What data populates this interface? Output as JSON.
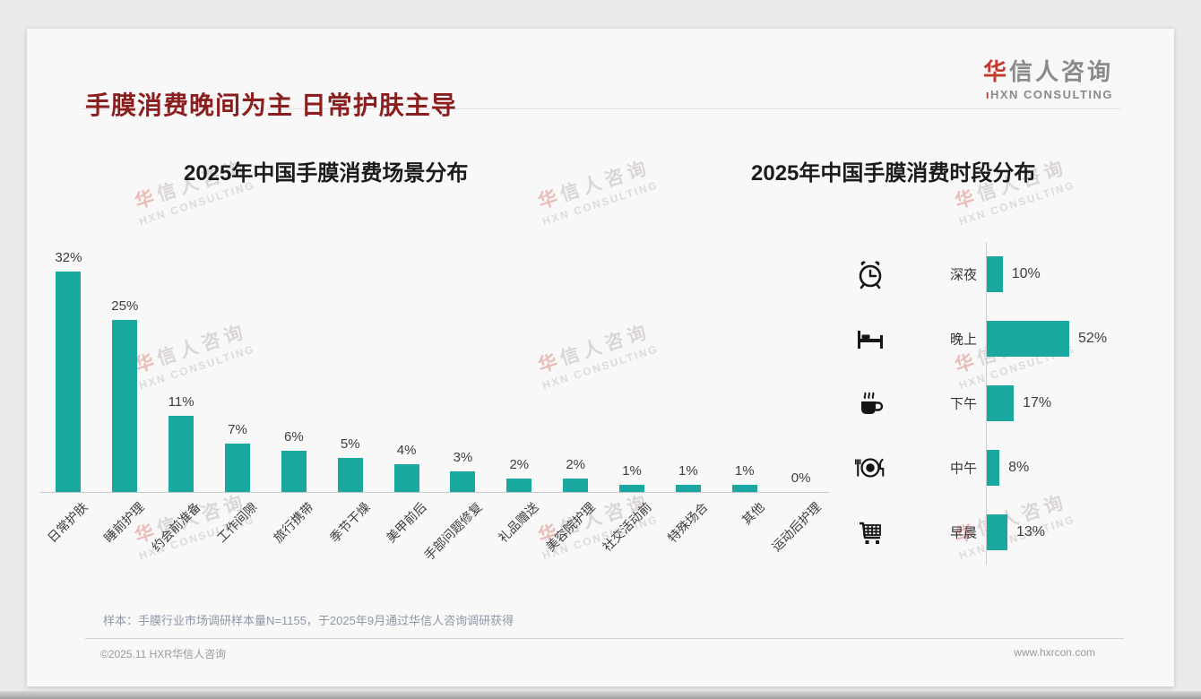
{
  "page": {
    "title": "手膜消费晚间为主 日常护肤主导",
    "logo": {
      "cn_first": "华",
      "cn_rest": "信人咨询",
      "en": "HXN CONSULTING"
    },
    "watermark": {
      "cn_first": "华",
      "cn_rest": "信人咨询",
      "en": "HXN CONSULTING"
    },
    "footer_note": "样本：手膜行业市场调研样本量N=1155，于2025年9月通过华信人咨询调研获得",
    "copyright": "©2025.11 HXR华信人咨询",
    "website": "www.hxrcon.com"
  },
  "colors": {
    "accent_teal": "#18a8a0",
    "title_red": "#8b1e1e",
    "logo_red": "#c23a30",
    "text_dark": "#3d3d3d",
    "axis_gray": "#c9c9c9",
    "note_gray": "#8f97a8",
    "footer_gray": "#9a9a9a"
  },
  "chart_data": [
    {
      "type": "bar",
      "orientation": "vertical",
      "title": "2025年中国手膜消费场景分布",
      "categories": [
        "日常护肤",
        "睡前护理",
        "约会前准备",
        "工作间隙",
        "旅行携带",
        "季节干燥",
        "美甲前后",
        "手部问题修复",
        "礼品赠送",
        "美容院护理",
        "社交活动前",
        "特殊场合",
        "其他",
        "运动后护理"
      ],
      "values": [
        32,
        25,
        11,
        7,
        6,
        5,
        4,
        3,
        2,
        2,
        1,
        1,
        1,
        0
      ],
      "unit": "%",
      "ylim": [
        0,
        32
      ],
      "grid": false,
      "legend": false,
      "bar_color": "#18a8a0",
      "value_labels": "above bars",
      "x_tick_rotation": -45
    },
    {
      "type": "bar",
      "orientation": "horizontal",
      "title": "2025年中国手膜消费时段分布",
      "categories": [
        "深夜",
        "晚上",
        "下午",
        "中午",
        "早晨"
      ],
      "values": [
        10,
        52,
        17,
        8,
        13
      ],
      "icons": [
        "alarm-clock",
        "bed",
        "coffee-cup",
        "dining-plate",
        "shopping-cart"
      ],
      "unit": "%",
      "xlim": [
        0,
        52
      ],
      "grid": false,
      "legend": false,
      "bar_color": "#18a8a0",
      "value_labels": "right of bars"
    }
  ]
}
